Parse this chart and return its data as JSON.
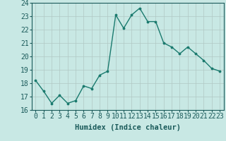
{
  "x": [
    0,
    1,
    2,
    3,
    4,
    5,
    6,
    7,
    8,
    9,
    10,
    11,
    12,
    13,
    14,
    15,
    16,
    17,
    18,
    19,
    20,
    21,
    22,
    23
  ],
  "y": [
    18.2,
    17.4,
    16.5,
    17.1,
    16.5,
    16.7,
    17.8,
    17.6,
    18.6,
    18.9,
    23.1,
    22.1,
    23.1,
    23.6,
    22.6,
    22.6,
    21.0,
    20.7,
    20.2,
    20.7,
    20.2,
    19.7,
    19.1,
    18.9
  ],
  "xlabel": "Humidex (Indice chaleur)",
  "ylim": [
    16,
    24
  ],
  "xlim": [
    -0.5,
    23.5
  ],
  "yticks": [
    16,
    17,
    18,
    19,
    20,
    21,
    22,
    23,
    24
  ],
  "xticks": [
    0,
    1,
    2,
    3,
    4,
    5,
    6,
    7,
    8,
    9,
    10,
    11,
    12,
    13,
    14,
    15,
    16,
    17,
    18,
    19,
    20,
    21,
    22,
    23
  ],
  "line_color": "#1a7a6e",
  "marker_color": "#1a7a6e",
  "bg_color": "#c8e8e4",
  "grid_color": "#b0c8c4",
  "fig_bg": "#c8e8e4",
  "xlabel_fontsize": 7.5,
  "tick_fontsize": 7
}
